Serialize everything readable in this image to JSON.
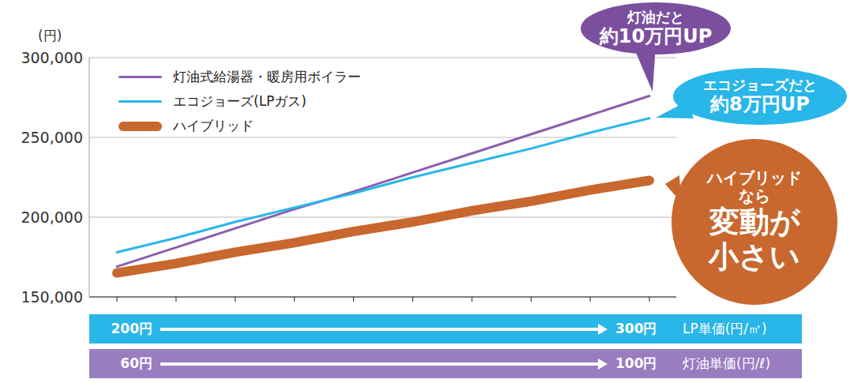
{
  "chart_data": {
    "type": "line",
    "y_label": "(円)",
    "categories": [
      null,
      null,
      null,
      null,
      null,
      null,
      null,
      null,
      null,
      null
    ],
    "series": [
      {
        "name": "灯油式給湯器・暖房用ボイラー",
        "color": "#8a5fb0",
        "line_style": "solid",
        "values": [
          169000,
          181000,
          193000,
          205000,
          216000,
          228000,
          240000,
          252000,
          264000,
          276000
        ]
      },
      {
        "name": "エコジョーズ(LPガス)",
        "color": "#29b6e8",
        "line_style": "solid",
        "values": [
          178000,
          187000,
          197000,
          206000,
          215000,
          225000,
          234000,
          243000,
          253000,
          262000
        ]
      },
      {
        "name": "ハイブリッド",
        "color": "#c8672e",
        "line_style": "thick",
        "values": [
          165000,
          171000,
          178000,
          184000,
          191000,
          197000,
          204000,
          210000,
          217000,
          223000
        ]
      }
    ],
    "ylim": [
      150000,
      300000
    ],
    "yticks": [
      {
        "value": 150000,
        "label": "150,000"
      },
      {
        "value": 200000,
        "label": "200,000"
      },
      {
        "value": 250000,
        "label": "250,000"
      },
      {
        "value": 300000,
        "label": "300,000"
      }
    ],
    "grid": true,
    "legend": "upper left",
    "tick_labels": "y",
    "annotations": [
      {
        "text": [
          "灯油だと",
          "約10万円UP"
        ],
        "color": "#7b4f9e"
      },
      {
        "text": [
          "エコジョーズだと",
          "約8万円UP"
        ],
        "color": "#29b6e8"
      },
      {
        "text": [
          "ハイブリッド",
          "なら",
          "変動が",
          "小さい"
        ],
        "color": "#c8672e"
      }
    ],
    "price_scales": [
      {
        "from": "200円",
        "to": "300円",
        "label": "LP単価(円/㎥)",
        "color": "#29b6e8"
      },
      {
        "from": "60円",
        "to": "100円",
        "label": "灯油単価(円/ℓ)",
        "color": "#9a7cc0"
      }
    ]
  }
}
